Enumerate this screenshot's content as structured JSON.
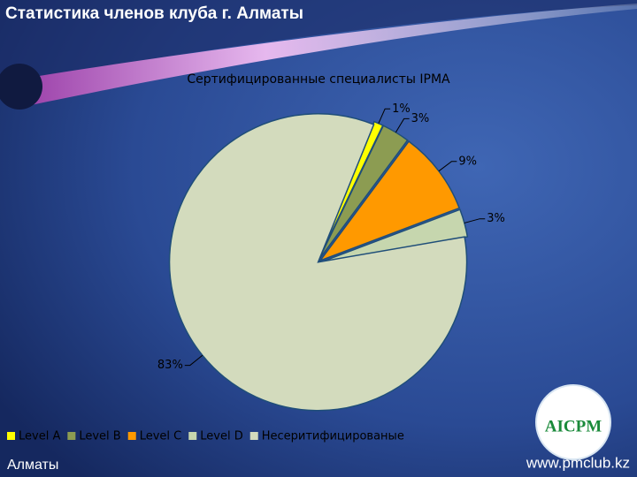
{
  "header": {
    "title": "Статистика членов клуба г. Алматы"
  },
  "chart_data": {
    "type": "pie",
    "title": "Сертифицированные специалисты IPMA",
    "categories": [
      "Level A",
      "Level B",
      "Level C",
      "Level D",
      "Несеритифицированые"
    ],
    "values": [
      1,
      3,
      9,
      3,
      83
    ],
    "value_labels": [
      "1%",
      "3%",
      "9%",
      "3%",
      "83%"
    ],
    "colors": [
      "#ffff00",
      "#8c9c52",
      "#ff9900",
      "#c6d6ae",
      "#d3dbbd"
    ]
  },
  "footer": {
    "city": "Алматы",
    "url": "www.pmclub.kz"
  },
  "logo": {
    "text": "AICPM"
  }
}
